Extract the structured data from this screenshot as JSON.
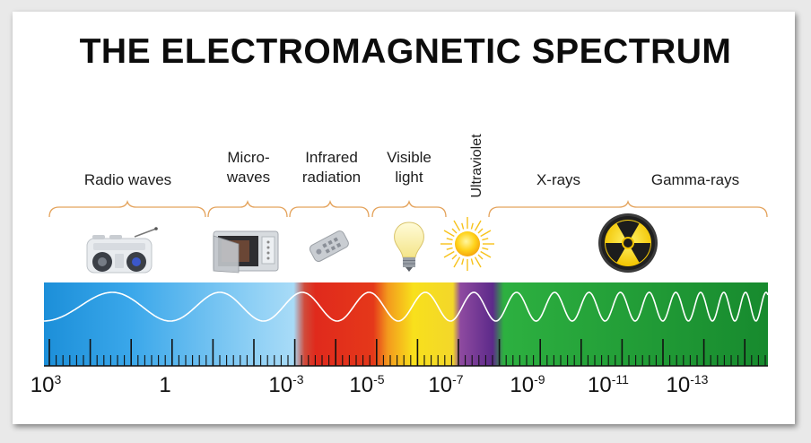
{
  "title": "THE ELECTROMAGNETIC SPECTRUM",
  "bands": [
    {
      "lines": [
        "Radio waves"
      ]
    },
    {
      "lines": [
        "Micro-",
        "waves"
      ]
    },
    {
      "lines": [
        "Infrared",
        "radiation"
      ]
    },
    {
      "lines": [
        "Visible",
        "light"
      ]
    },
    {
      "lines": [
        "Ultraviolet"
      ]
    },
    {
      "lines": [
        "X-rays"
      ]
    },
    {
      "lines": [
        "Gamma-rays"
      ]
    }
  ],
  "scale_labels": [
    {
      "base": "10",
      "exp": "3"
    },
    {
      "base": "1",
      "exp": ""
    },
    {
      "base": "10",
      "exp": "-3"
    },
    {
      "base": "10",
      "exp": "-5"
    },
    {
      "base": "10",
      "exp": "-7"
    },
    {
      "base": "10",
      "exp": "-9"
    },
    {
      "base": "10",
      "exp": "-11"
    },
    {
      "base": "10",
      "exp": "-13"
    }
  ],
  "icons": [
    "radio-icon",
    "microwave-oven-icon",
    "remote-control-icon",
    "light-bulb-icon",
    "sun-icon",
    "radiation-hazard-icon"
  ],
  "colors": {
    "radio": "#2ea3e6",
    "microwave": "#9fd6f6",
    "infrared": "#d9261c",
    "visible_orange": "#f59b1c",
    "visible_yellow": "#f7e21b",
    "ultraviolet": "#6a2c90",
    "xray_gamma": "#1fa53a"
  }
}
